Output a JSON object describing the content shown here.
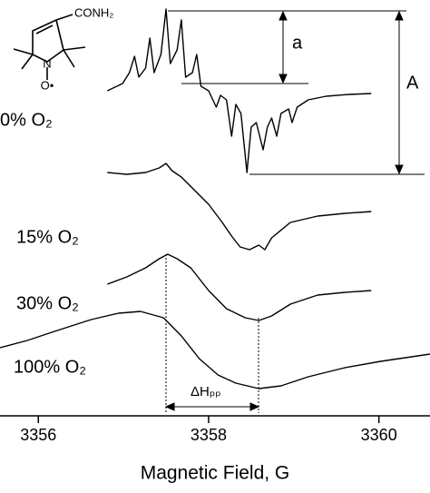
{
  "chart_data": {
    "type": "line",
    "x_label": "Magnetic Field, G",
    "xlim": [
      3355.55,
      3360.6
    ],
    "xticks": [
      3356,
      3358,
      3360
    ],
    "ylim": [
      0,
      458
    ],
    "annotations": [
      "a",
      "A",
      "ΔHₚₚ"
    ],
    "structure_labels": [
      "CONH₂",
      "N",
      "O•"
    ],
    "series": [
      {
        "name": "0% O₂",
        "color": "#000000",
        "x": [
          3356.81,
          3356.99,
          3357.07,
          3357.13,
          3357.18,
          3357.26,
          3357.31,
          3357.36,
          3357.44,
          3357.5,
          3357.55,
          3357.63,
          3357.68,
          3357.73,
          3357.81,
          3357.86,
          3357.91,
          3358.0,
          3358.09,
          3358.14,
          3358.21,
          3358.27,
          3358.32,
          3358.38,
          3358.45,
          3358.5,
          3358.56,
          3358.64,
          3358.69,
          3358.74,
          3358.8,
          3358.85,
          3358.94,
          3358.98,
          3359.04,
          3359.17,
          3359.38,
          3359.65,
          3359.91
        ],
        "values": [
          358,
          366,
          378,
          396,
          373,
          383,
          416,
          378,
          398,
          448,
          388,
          403,
          436,
          373,
          378,
          398,
          363,
          358,
          340,
          353,
          348,
          308,
          343,
          333,
          268,
          318,
          323,
          293,
          318,
          328,
          308,
          333,
          338,
          323,
          340,
          348,
          352,
          354,
          355
        ]
      },
      {
        "name": "15% O₂",
        "color": "#000000",
        "x": [
          3356.81,
          3357.04,
          3357.26,
          3357.42,
          3357.5,
          3357.57,
          3357.68,
          3357.84,
          3358.0,
          3358.16,
          3358.27,
          3358.37,
          3358.48,
          3358.59,
          3358.66,
          3358.74,
          3358.96,
          3359.28,
          3359.6,
          3359.91
        ],
        "values": [
          268,
          266,
          268,
          273,
          278,
          270,
          263,
          248,
          233,
          213,
          198,
          186,
          183,
          188,
          183,
          196,
          213,
          220,
          223,
          225
        ]
      },
      {
        "name": "30% O₂",
        "color": "#000000",
        "x": [
          3356.81,
          3357.04,
          3357.26,
          3357.42,
          3357.52,
          3357.63,
          3357.79,
          3358.0,
          3358.21,
          3358.43,
          3358.59,
          3358.74,
          3358.96,
          3359.28,
          3359.6,
          3359.91
        ],
        "values": [
          145,
          153,
          163,
          173,
          178,
          173,
          163,
          138,
          118,
          108,
          105,
          110,
          123,
          133,
          136,
          138
        ]
      },
      {
        "name": "100% O₂",
        "color": "#000000",
        "x": [
          3355.55,
          3355.87,
          3356.19,
          3356.62,
          3356.94,
          3357.2,
          3357.47,
          3357.68,
          3357.89,
          3358.11,
          3358.32,
          3358.59,
          3358.85,
          3359.17,
          3359.6,
          3360.02,
          3360.6
        ],
        "values": [
          75,
          83,
          93,
          106,
          113,
          115,
          108,
          88,
          63,
          45,
          36,
          30,
          33,
          43,
          53,
          60,
          68
        ]
      }
    ]
  }
}
